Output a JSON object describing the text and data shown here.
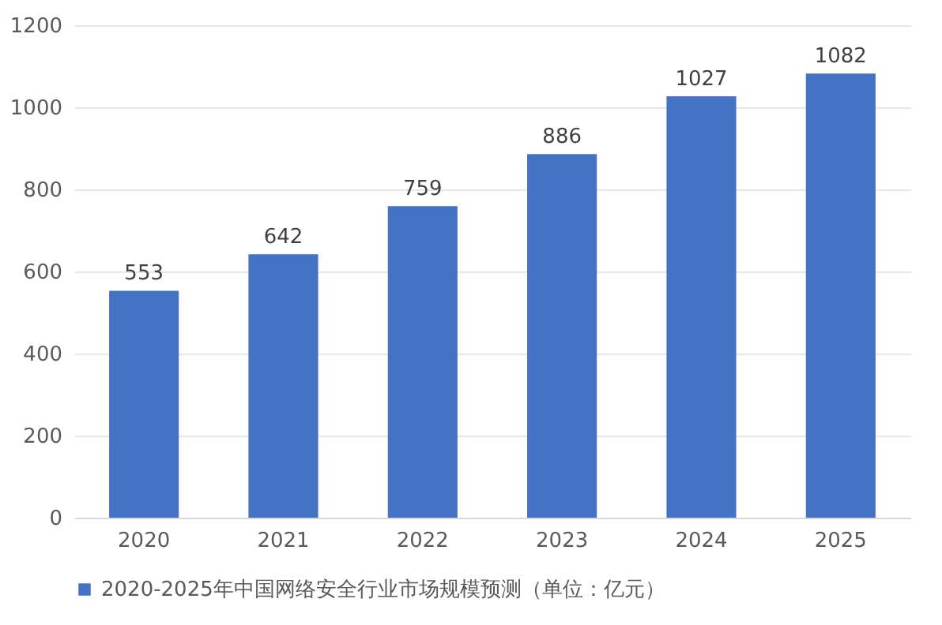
{
  "chart_data": {
    "type": "bar",
    "categories": [
      "2020",
      "2021",
      "2022",
      "2023",
      "2024",
      "2025"
    ],
    "series": [
      {
        "name": "2020-2025年中国网络安全行业市场规模预测（单位：亿元）",
        "color": "#4472c4",
        "values": [
          553,
          642,
          759,
          886,
          1027,
          1082
        ]
      }
    ],
    "ylim": [
      0,
      1200
    ],
    "yticks": [
      0,
      200,
      400,
      600,
      800,
      1000,
      1200
    ],
    "grid": "y",
    "legend": "bottom",
    "data_labels": true
  }
}
